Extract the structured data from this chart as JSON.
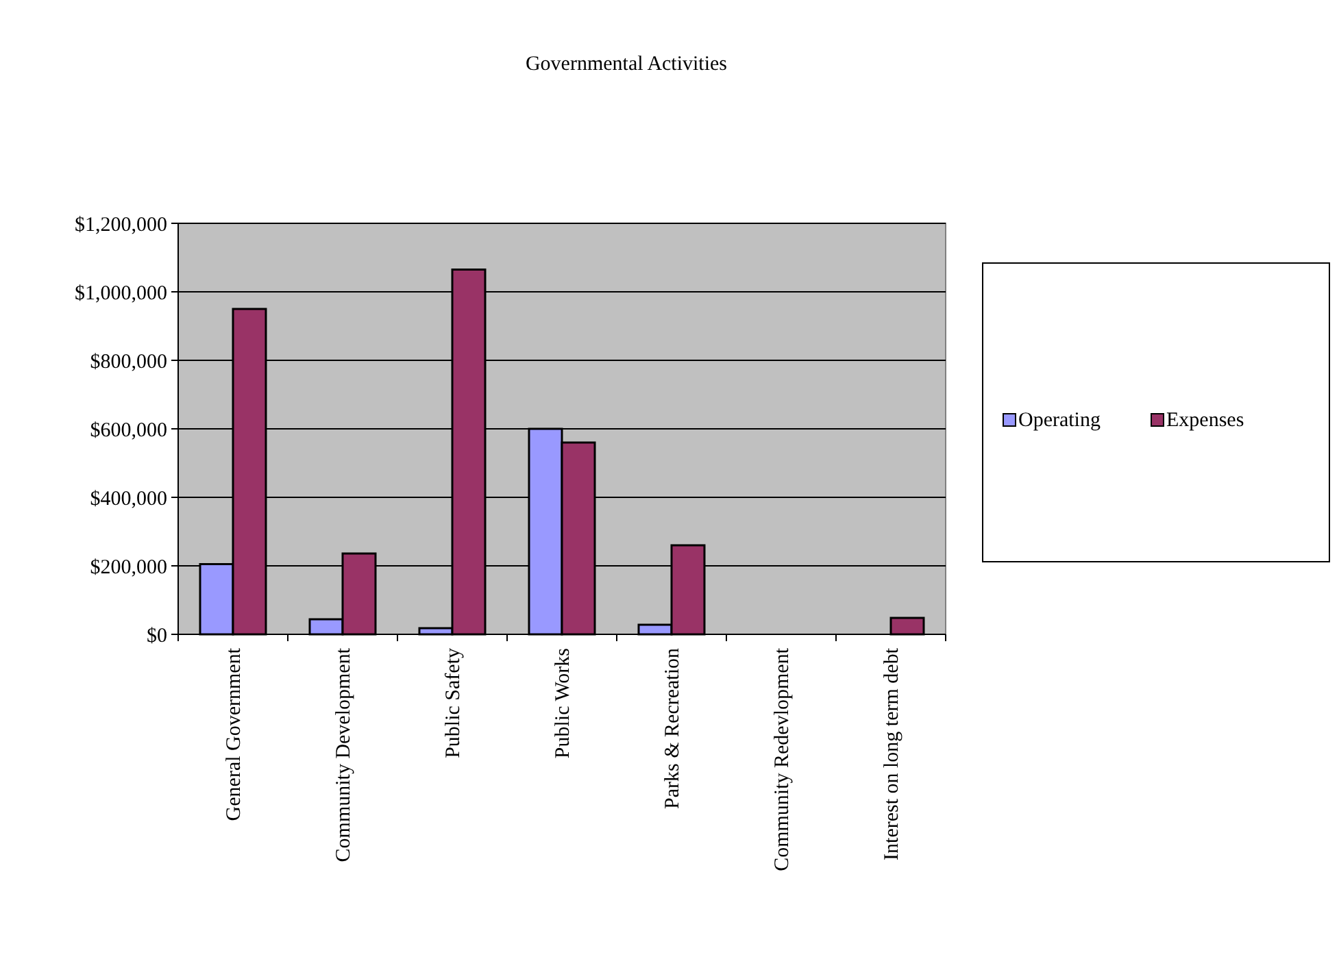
{
  "chart_data": {
    "type": "bar",
    "title": "Governmental Activities",
    "categories": [
      "General Government",
      "Community Development",
      "Public Safety",
      "Public Works",
      "Parks & Recreation",
      "Community Redevlopment",
      "Interest on long term debt"
    ],
    "series": [
      {
        "name": "Operating",
        "color": "#9999ff",
        "values": [
          205000,
          44000,
          18000,
          600000,
          28000,
          0,
          0
        ]
      },
      {
        "name": "Expenses",
        "color": "#993366",
        "values": [
          950000,
          236000,
          1065000,
          560000,
          260000,
          0,
          48000
        ]
      }
    ],
    "ylim": [
      0,
      1200000
    ],
    "yticks": [
      {
        "value": 0,
        "label": "$0"
      },
      {
        "value": 200000,
        "label": "$200,000"
      },
      {
        "value": 400000,
        "label": "$400,000"
      },
      {
        "value": 600000,
        "label": "$600,000"
      },
      {
        "value": 800000,
        "label": "$800,000"
      },
      {
        "value": 1000000,
        "label": "$1,000,000"
      },
      {
        "value": 1200000,
        "label": "$1,200,000"
      }
    ],
    "grid": "y",
    "legend": "right"
  }
}
